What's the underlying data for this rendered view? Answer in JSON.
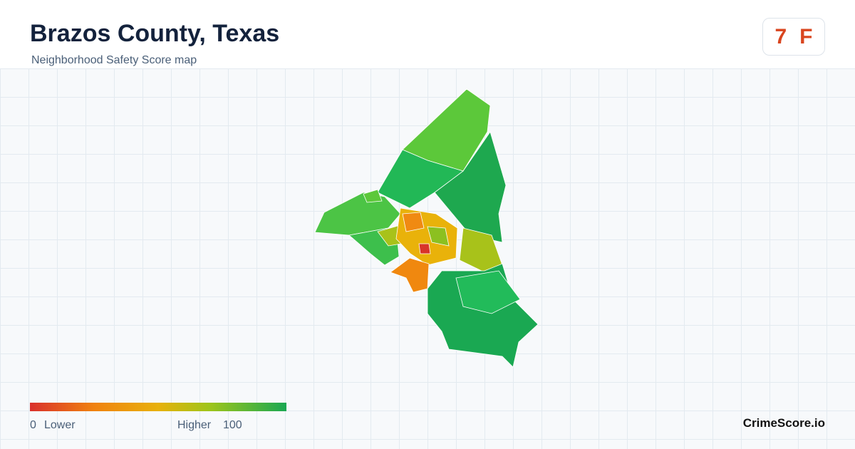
{
  "header": {
    "title": "Brazos County, Texas",
    "subtitle": "Neighborhood Safety Score map",
    "score": 7,
    "grade": "F"
  },
  "legend": {
    "min": 0,
    "low_label": "Lower",
    "high_label": "Higher",
    "max": 100
  },
  "footer": {
    "brand": "CrimeScore.io"
  }
}
